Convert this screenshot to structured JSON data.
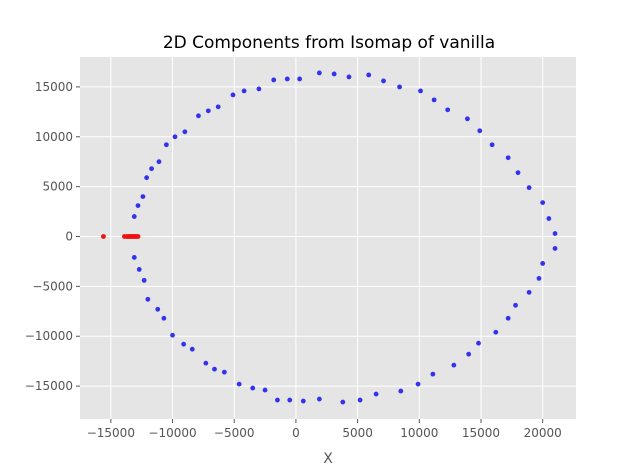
{
  "chart_data": {
    "type": "scatter",
    "title": "2D Components from Isomap of vanilla",
    "xlabel": "X",
    "ylabel": "",
    "xlim": [
      -17500,
      22700
    ],
    "ylim": [
      -18300,
      18000
    ],
    "xticks": [
      -15000,
      -10000,
      -5000,
      0,
      5000,
      10000,
      15000,
      20000
    ],
    "yticks": [
      -15000,
      -10000,
      -5000,
      0,
      5000,
      10000,
      15000
    ],
    "grid": true,
    "colors": {
      "background": "#E5E5E5",
      "grid": "#FFFFFF",
      "blue": "#3333EE",
      "red": "#EE1111"
    },
    "series": [
      {
        "color": "blue",
        "points": [
          [
            1900,
            16400
          ],
          [
            3100,
            16300
          ],
          [
            4300,
            16000
          ],
          [
            5900,
            16200
          ],
          [
            7100,
            15600
          ],
          [
            8400,
            15000
          ],
          [
            10100,
            14600
          ],
          [
            11200,
            13700
          ],
          [
            12300,
            12700
          ],
          [
            13900,
            11800
          ],
          [
            14900,
            10600
          ],
          [
            15900,
            9200
          ],
          [
            17200,
            7900
          ],
          [
            18000,
            6400
          ],
          [
            18900,
            4900
          ],
          [
            20000,
            3400
          ],
          [
            20500,
            1800
          ],
          [
            21000,
            300
          ],
          [
            21000,
            -1200
          ],
          [
            20000,
            -2700
          ],
          [
            19700,
            -4200
          ],
          [
            18900,
            -5600
          ],
          [
            17800,
            -6900
          ],
          [
            17200,
            -8200
          ],
          [
            16200,
            -9600
          ],
          [
            14800,
            -10700
          ],
          [
            14000,
            -11800
          ],
          [
            12800,
            -12900
          ],
          [
            11100,
            -13800
          ],
          [
            9900,
            -14800
          ],
          [
            8500,
            -15500
          ],
          [
            6500,
            -15800
          ],
          [
            5200,
            -16400
          ],
          [
            3800,
            -16600
          ],
          [
            1900,
            -16300
          ],
          [
            600,
            -16500
          ],
          [
            -500,
            -16400
          ],
          [
            -1500,
            -16400
          ],
          [
            -2500,
            -15400
          ],
          [
            -3500,
            -15200
          ],
          [
            -4600,
            -14800
          ],
          [
            -5800,
            -13600
          ],
          [
            -6600,
            -13300
          ],
          [
            -7300,
            -12700
          ],
          [
            -8400,
            -11300
          ],
          [
            -9100,
            -10800
          ],
          [
            -10000,
            -9900
          ],
          [
            -10700,
            -8200
          ],
          [
            -11200,
            -7300
          ],
          [
            -12000,
            -6300
          ],
          [
            -12300,
            -4400
          ],
          [
            -12700,
            -3300
          ],
          [
            -13100,
            -2100
          ],
          [
            -13100,
            2000
          ],
          [
            -12800,
            3100
          ],
          [
            -12400,
            4000
          ],
          [
            -12100,
            5900
          ],
          [
            -11700,
            6800
          ],
          [
            -11100,
            7500
          ],
          [
            -10500,
            9200
          ],
          [
            -9800,
            10000
          ],
          [
            -9000,
            10500
          ],
          [
            -7900,
            12100
          ],
          [
            -7100,
            12600
          ],
          [
            -6300,
            13000
          ],
          [
            -5100,
            14200
          ],
          [
            -4200,
            14600
          ],
          [
            -3000,
            14800
          ],
          [
            -1800,
            15700
          ],
          [
            -700,
            15800
          ],
          [
            300,
            15800
          ]
        ]
      },
      {
        "color": "red",
        "points": [
          [
            -15600,
            0
          ],
          [
            -13900,
            0
          ],
          [
            -13700,
            0
          ],
          [
            -13500,
            0
          ],
          [
            -13300,
            0
          ],
          [
            -13200,
            0
          ],
          [
            -13100,
            0
          ],
          [
            -13000,
            0
          ],
          [
            -12900,
            0
          ],
          [
            -12800,
            0
          ],
          [
            -13400,
            0
          ],
          [
            -13600,
            0
          ]
        ]
      }
    ]
  }
}
